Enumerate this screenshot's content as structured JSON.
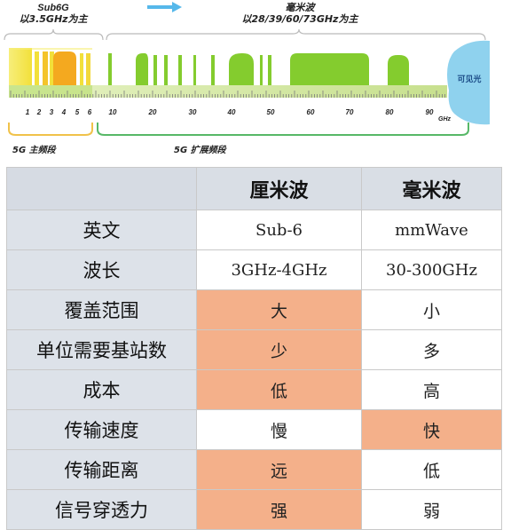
{
  "spectrum": {
    "sub6_title": "Sub6G",
    "sub6_subtitle": "以3.5GHz为主",
    "mmwave_title": "毫米波",
    "mmwave_subtitle": "以28/39/60/73GHz为主",
    "visible_light": "可见光",
    "unit": "GHz",
    "ticks_low": [
      "1",
      "2",
      "3",
      "4",
      "5",
      "6"
    ],
    "ticks_high": [
      "10",
      "20",
      "30",
      "40",
      "50",
      "60",
      "70",
      "80",
      "90"
    ],
    "main_band_label": "5G 主频段",
    "ext_band_label": "5G 扩展频段",
    "colors": {
      "yellow": "#f2e64a",
      "orange": "#f4a91f",
      "green": "#84cc2e",
      "ruler": "#c4de8e",
      "visible": "#8fd2ee",
      "arrow": "#56b8ea",
      "main_bracket": "#f0c24a",
      "ext_bracket": "#57b867"
    }
  },
  "table": {
    "corner": "",
    "columns": [
      "厘米波",
      "毫米波"
    ],
    "rows": [
      {
        "label": "英文",
        "values": [
          "Sub-6",
          "mmWave"
        ],
        "highlight": [
          false,
          false
        ]
      },
      {
        "label": "波长",
        "values": [
          "3GHz-4GHz",
          "30-300GHz"
        ],
        "highlight": [
          false,
          false
        ]
      },
      {
        "label": "覆盖范围",
        "values": [
          "大",
          "小"
        ],
        "highlight": [
          true,
          false
        ]
      },
      {
        "label": "单位需要基站数",
        "values": [
          "少",
          "多"
        ],
        "highlight": [
          true,
          false
        ]
      },
      {
        "label": "成本",
        "values": [
          "低",
          "高"
        ],
        "highlight": [
          true,
          false
        ]
      },
      {
        "label": "传输速度",
        "values": [
          "慢",
          "快"
        ],
        "highlight": [
          false,
          true
        ]
      },
      {
        "label": "传输距离",
        "values": [
          "远",
          "低"
        ],
        "highlight": [
          true,
          false
        ]
      },
      {
        "label": "信号穿透力",
        "values": [
          "强",
          "弱"
        ],
        "highlight": [
          true,
          false
        ]
      }
    ]
  }
}
